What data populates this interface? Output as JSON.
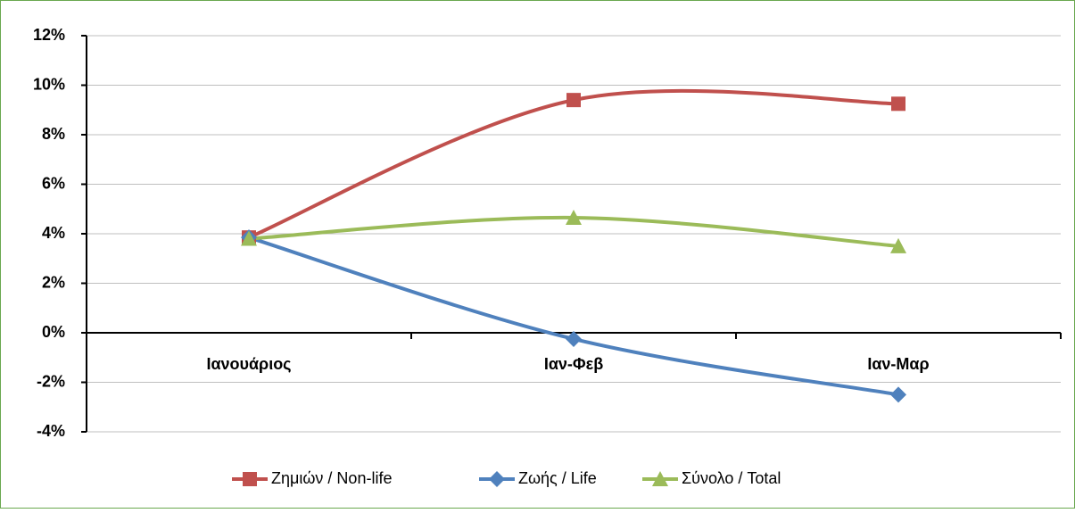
{
  "chart_data": {
    "type": "line",
    "categories": [
      "Ιανουάριος",
      "Ιαν-Φεβ",
      "Ιαν-Μαρ"
    ],
    "series": [
      {
        "name": "Ζημιών / Non-life",
        "color": "#c0504d",
        "marker": "square",
        "values": [
          3.85,
          9.4,
          9.25
        ]
      },
      {
        "name": "Ζωής / Life",
        "color": "#4f81bd",
        "marker": "diamond",
        "values": [
          3.85,
          -0.25,
          -2.5
        ]
      },
      {
        "name": "Σύνολο / Total",
        "color": "#9bbb59",
        "marker": "triangle",
        "values": [
          3.8,
          4.65,
          3.5
        ]
      }
    ],
    "ylim": [
      -4,
      12
    ],
    "yticks": [
      {
        "value": -4,
        "label": "-4%"
      },
      {
        "value": -2,
        "label": "-2%"
      },
      {
        "value": 0,
        "label": "0%"
      },
      {
        "value": 2,
        "label": "2%"
      },
      {
        "value": 4,
        "label": "4%"
      },
      {
        "value": 6,
        "label": "6%"
      },
      {
        "value": 8,
        "label": "8%"
      },
      {
        "value": 10,
        "label": "10%"
      },
      {
        "value": 12,
        "label": "12%"
      }
    ],
    "grid": true,
    "smooth": true,
    "legend": "bottom"
  }
}
